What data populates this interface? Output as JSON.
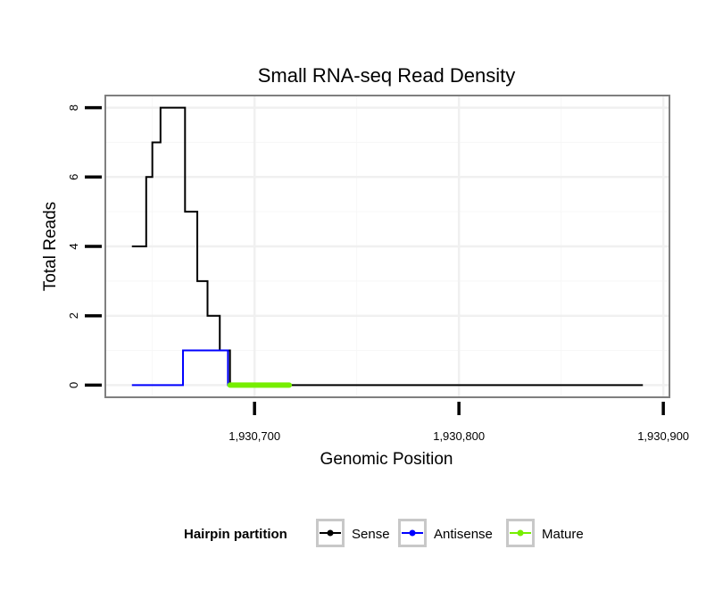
{
  "chart_data": {
    "type": "line",
    "title": "Small RNA-seq Read Density",
    "xlabel": "Genomic Position",
    "ylabel": "Total Reads",
    "xlim": [
      1930627,
      1930903
    ],
    "ylim": [
      -0.35,
      8.35
    ],
    "x_ticks": [
      {
        "value": 1930700,
        "label": "1,930,700"
      },
      {
        "value": 1930800,
        "label": "1,930,800"
      },
      {
        "value": 1930900,
        "label": "1,930,900"
      }
    ],
    "y_ticks": [
      {
        "value": 0,
        "label": "0"
      },
      {
        "value": 2,
        "label": "2"
      },
      {
        "value": 4,
        "label": "4"
      },
      {
        "value": 6,
        "label": "6"
      },
      {
        "value": 8,
        "label": "8"
      }
    ],
    "grid": true,
    "legend": {
      "title": "Hairpin partition",
      "position": "bottom",
      "entries": [
        "Sense",
        "Antisense",
        "Mature"
      ]
    },
    "series": [
      {
        "name": "Sense",
        "color": "#000000",
        "step": true,
        "x": [
          1930640,
          1930647,
          1930650,
          1930654,
          1930660,
          1930666,
          1930672,
          1930677,
          1930683,
          1930685,
          1930688,
          1930692,
          1930890
        ],
        "values": [
          4,
          6,
          7,
          8,
          8,
          5,
          3,
          2,
          1,
          1,
          0,
          0,
          0
        ]
      },
      {
        "name": "Antisense",
        "color": "#0000FF",
        "step": true,
        "x": [
          1930640,
          1930664,
          1930665,
          1930686,
          1930687,
          1930690
        ],
        "values": [
          0,
          0,
          1,
          1,
          0,
          0
        ]
      },
      {
        "name": "Mature",
        "color": "#76EE00",
        "step": false,
        "x": [
          1930688,
          1930717
        ],
        "values": [
          0,
          0
        ]
      }
    ]
  }
}
